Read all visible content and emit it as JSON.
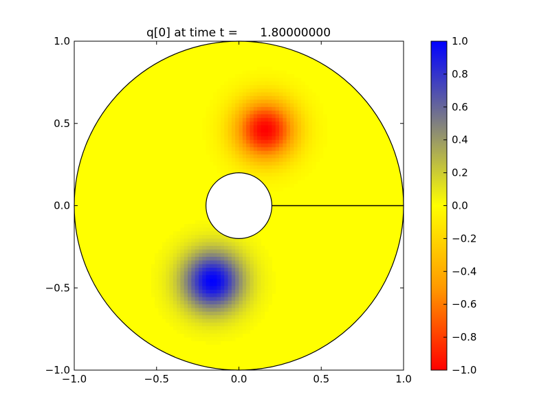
{
  "chart_data": {
    "type": "heatmap",
    "title": "q[0] at time t =      1.80000000",
    "xlabel": "",
    "ylabel": "",
    "xlim": [
      -1.0,
      1.0
    ],
    "ylim": [
      -1.0,
      1.0
    ],
    "x_ticks": [
      "−1.0",
      "−0.5",
      "0.0",
      "0.5",
      "1.0"
    ],
    "y_ticks": [
      "−1.0",
      "−0.5",
      "0.0",
      "0.5",
      "1.0"
    ],
    "domain": {
      "shape": "annulus",
      "inner_radius": 0.2,
      "outer_radius": 1.0,
      "branch_cut_angle_deg": 0
    },
    "field_background_value": 0.0,
    "blobs": [
      {
        "name": "negative",
        "center": [
          0.16,
          0.46
        ],
        "peak": -1.0,
        "spread": 0.13
      },
      {
        "name": "positive",
        "center": [
          -0.16,
          -0.46
        ],
        "peak": 1.0,
        "spread": 0.13
      }
    ],
    "colorbar": {
      "range": [
        -1.0,
        1.0
      ],
      "ticks": [
        "1.0",
        "0.8",
        "0.6",
        "0.4",
        "0.2",
        "0.0",
        "−0.2",
        "−0.4",
        "−0.6",
        "−0.8",
        "−1.0"
      ],
      "colors": {
        "min": "#ff0000",
        "mid_low": "#ff9900",
        "zero": "#ffff00",
        "mid_high": "#808080",
        "max": "#0000ff"
      }
    },
    "grid": false,
    "legend": "none"
  }
}
